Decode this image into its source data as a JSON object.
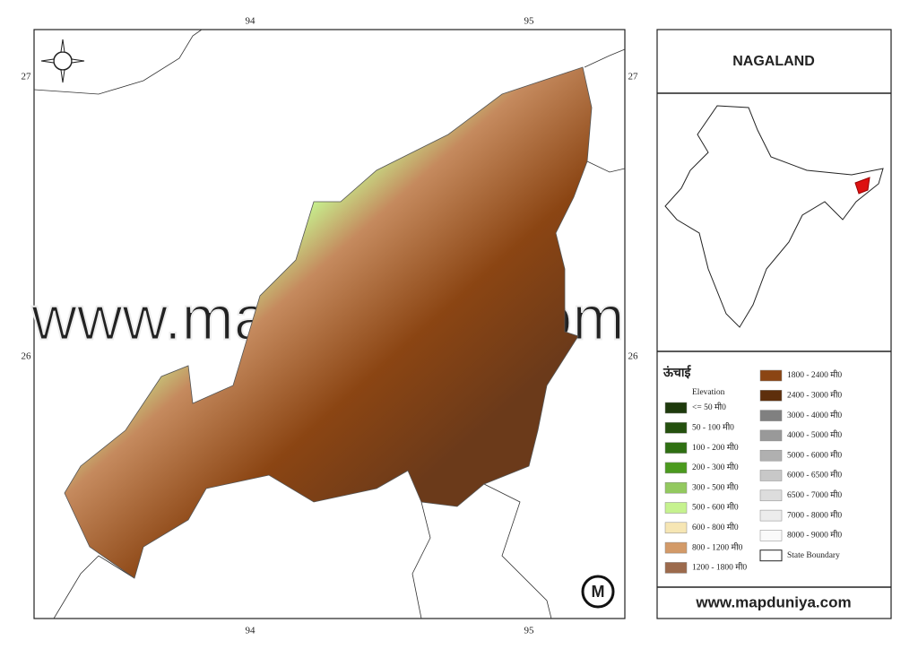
{
  "map": {
    "title": "NAGALAND",
    "top_labels": [
      "94",
      "95"
    ],
    "bottom_labels": [
      "94",
      "95"
    ],
    "left_labels": [
      "27",
      "26"
    ],
    "right_labels": [
      "27",
      "26"
    ],
    "watermark": "www.mapduniya.com",
    "legend": {
      "title": "ऊंचाई",
      "subtitle": "Elevation",
      "items": [
        {
          "label": "<= 50 मी0",
          "color": "#1e3a0c"
        },
        {
          "label": "50 - 100 मी0",
          "color": "#24500e"
        },
        {
          "label": "100 - 200 मी0",
          "color": "#2f6f12"
        },
        {
          "label": "200 - 300 मी0",
          "color": "#4b9a1e"
        },
        {
          "label": "300 - 500 मी0",
          "color": "#93c95f"
        },
        {
          "label": "500 - 600 मी0",
          "color": "#c6f28f"
        },
        {
          "label": "600 - 800 मी0",
          "color": "#f6e6b4"
        },
        {
          "label": "800 - 1200 मी0",
          "color": "#d39a68"
        },
        {
          "label": "1200 - 1800 मी0",
          "color": "#9c6a4c"
        },
        {
          "label": "1800 - 2400 मी0",
          "color": "#8b4513"
        },
        {
          "label": "2400 - 3000 मी0",
          "color": "#5e2f0c"
        },
        {
          "label": "3000 - 4000 मी0",
          "color": "#808080"
        },
        {
          "label": "4000 - 5000 मी0",
          "color": "#999999"
        },
        {
          "label": "5000 - 6000 मी0",
          "color": "#b0b0b0"
        },
        {
          "label": "6000 - 6500 मी0",
          "color": "#c8c8c8"
        },
        {
          "label": "6500 - 7000 मी0",
          "color": "#dddddd"
        },
        {
          "label": "7000 - 8000 मी0",
          "color": "#ececec"
        },
        {
          "label": "8000 - 9000 मी0",
          "color": "#fafafa"
        }
      ],
      "boundary_label": "State Boundary"
    },
    "website": "www.mapduniya.com"
  }
}
